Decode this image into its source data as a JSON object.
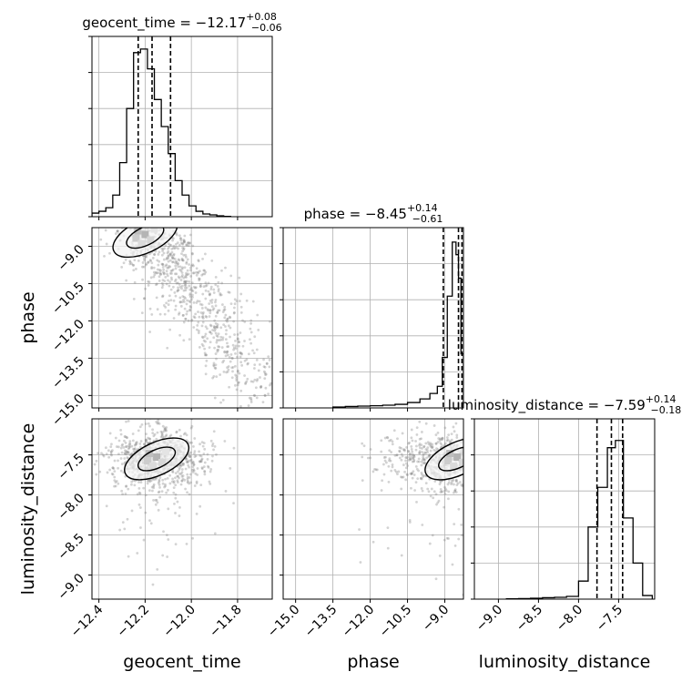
{
  "chart_data": {
    "type": "corner",
    "parameters": [
      {
        "name": "geocent_time",
        "title_prefix": "geocent_time = −12.17",
        "title_sup": "+0.08",
        "title_sub": "−0.06",
        "median": -12.17,
        "quantiles": [
          -12.23,
          -12.17,
          -12.09
        ],
        "range": [
          -12.43,
          -11.65
        ],
        "ticks": [
          -12.4,
          -12.2,
          -12.0,
          -11.8
        ],
        "tick_labels": [
          "−12.4",
          "−12.2",
          "−12.0",
          "−11.8"
        ],
        "hist_bins": [
          -12.43,
          -12.4,
          -12.37,
          -12.34,
          -12.31,
          -12.28,
          -12.25,
          -12.22,
          -12.19,
          -12.16,
          -12.13,
          -12.1,
          -12.07,
          -12.04,
          -12.01,
          -11.98,
          -11.95,
          -11.92,
          -11.89,
          -11.86
        ],
        "hist_values": [
          0.02,
          0.03,
          0.05,
          0.12,
          0.3,
          0.6,
          0.91,
          0.93,
          0.82,
          0.65,
          0.5,
          0.35,
          0.2,
          0.12,
          0.06,
          0.03,
          0.015,
          0.01,
          0.005,
          0.002
        ]
      },
      {
        "name": "phase",
        "title_prefix": "phase = −8.45",
        "title_sup": "+0.14",
        "title_sub": "−0.61",
        "median": -8.45,
        "quantiles": [
          -9.06,
          -8.45,
          -8.31
        ],
        "range": [
          -15.5,
          -8.25
        ],
        "ticks": [
          -15.0,
          -13.5,
          -12.0,
          -10.5,
          -9.0
        ],
        "tick_labels": [
          "−15.0",
          "−13.5",
          "−12.0",
          "−10.5",
          "−9.0"
        ],
        "hist_bins": [
          -13.5,
          -13.0,
          -12.5,
          -12.0,
          -11.5,
          -11.0,
          -10.5,
          -10.0,
          -9.6,
          -9.3,
          -9.1,
          -8.9,
          -8.7,
          -8.55,
          -8.45,
          -8.35
        ],
        "hist_values": [
          0.005,
          0.008,
          0.01,
          0.012,
          0.015,
          0.02,
          0.03,
          0.05,
          0.08,
          0.12,
          0.28,
          0.62,
          0.92,
          0.85,
          0.72,
          0.3
        ]
      },
      {
        "name": "luminosity_distance",
        "title_prefix": "luminosity_distance = −7.59",
        "title_sup": "+0.14",
        "title_sub": "−0.18",
        "median": -7.59,
        "quantiles": [
          -7.77,
          -7.59,
          -7.45
        ],
        "range": [
          -9.3,
          -7.05
        ],
        "ticks": [
          -9.0,
          -8.5,
          -8.0,
          -7.5
        ],
        "tick_labels": [
          "−9.0",
          "−8.5",
          "−8.0",
          "−7.5"
        ],
        "hist_bins": [
          -8.9,
          -8.75,
          -8.6,
          -8.45,
          -8.3,
          -8.15,
          -8.0,
          -7.88,
          -7.76,
          -7.64,
          -7.54,
          -7.44,
          -7.32,
          -7.2
        ],
        "hist_values": [
          0.002,
          0.003,
          0.005,
          0.008,
          0.01,
          0.015,
          0.1,
          0.4,
          0.62,
          0.84,
          0.88,
          0.45,
          0.2,
          0.02
        ]
      }
    ],
    "scatter_panels": [
      {
        "x": "geocent_time",
        "y": "phase",
        "center": [
          -12.2,
          -8.6
        ],
        "density": "high near top-left, tail toward lower-right"
      },
      {
        "x": "geocent_time",
        "y": "luminosity_distance",
        "center": [
          -12.15,
          -7.55
        ]
      },
      {
        "x": "phase",
        "y": "luminosity_distance",
        "center": [
          -8.5,
          -7.55
        ]
      }
    ],
    "grid": true,
    "point_color": "#808080",
    "line_color": "#000000"
  }
}
